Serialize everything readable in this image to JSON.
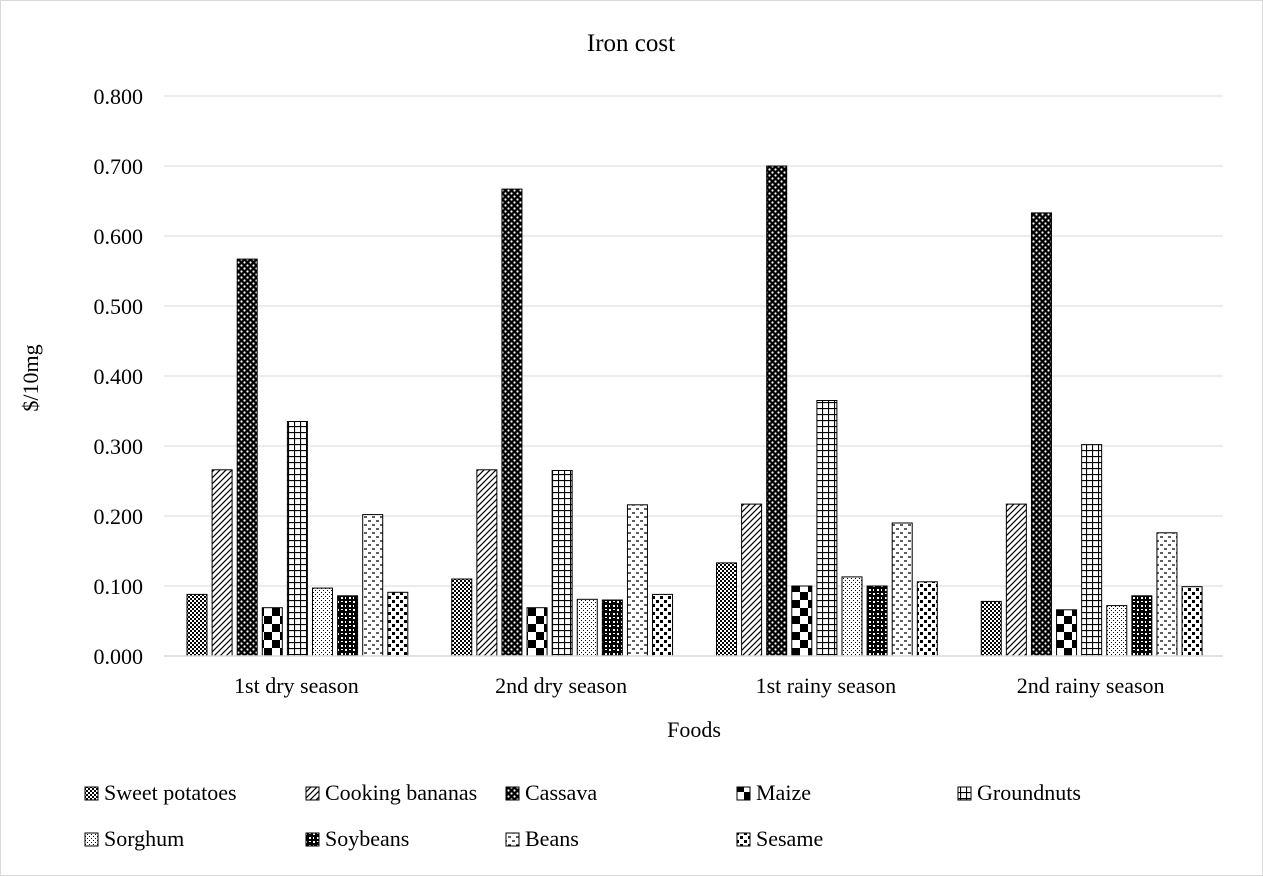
{
  "chart_data": {
    "type": "bar",
    "title": "Iron cost",
    "xlabel": "Foods",
    "ylabel": "$/10mg",
    "ylim": [
      0,
      0.8
    ],
    "ytick_step": 0.1,
    "ytick_labels": [
      "0.000",
      "0.100",
      "0.200",
      "0.300",
      "0.400",
      "0.500",
      "0.600",
      "0.700",
      "0.800"
    ],
    "grid": true,
    "legend_position": "bottom",
    "categories": [
      "1st dry season",
      "2nd dry season",
      "1st rainy season",
      "2nd rainy season"
    ],
    "series": [
      {
        "name": "Sweet potatoes",
        "pattern": "small-checker",
        "values": [
          0.088,
          0.11,
          0.133,
          0.078
        ]
      },
      {
        "name": "Cooking bananas",
        "pattern": "diagonal",
        "values": [
          0.266,
          0.266,
          0.217,
          0.217
        ]
      },
      {
        "name": "Cassava",
        "pattern": "dots-dense",
        "values": [
          0.567,
          0.667,
          0.7,
          0.633
        ]
      },
      {
        "name": "Maize",
        "pattern": "large-checker",
        "values": [
          0.069,
          0.069,
          0.1,
          0.066
        ]
      },
      {
        "name": "Groundnuts",
        "pattern": "grid",
        "values": [
          0.335,
          0.265,
          0.365,
          0.302
        ]
      },
      {
        "name": "Sorghum",
        "pattern": "dotted",
        "values": [
          0.097,
          0.081,
          0.113,
          0.072
        ]
      },
      {
        "name": "Soybeans",
        "pattern": "weave",
        "values": [
          0.086,
          0.08,
          0.1,
          0.086
        ]
      },
      {
        "name": "Beans",
        "pattern": "dash",
        "values": [
          0.202,
          0.216,
          0.19,
          0.176
        ]
      },
      {
        "name": "Sesame",
        "pattern": "sparse-checker",
        "values": [
          0.091,
          0.088,
          0.106,
          0.099
        ]
      }
    ]
  }
}
